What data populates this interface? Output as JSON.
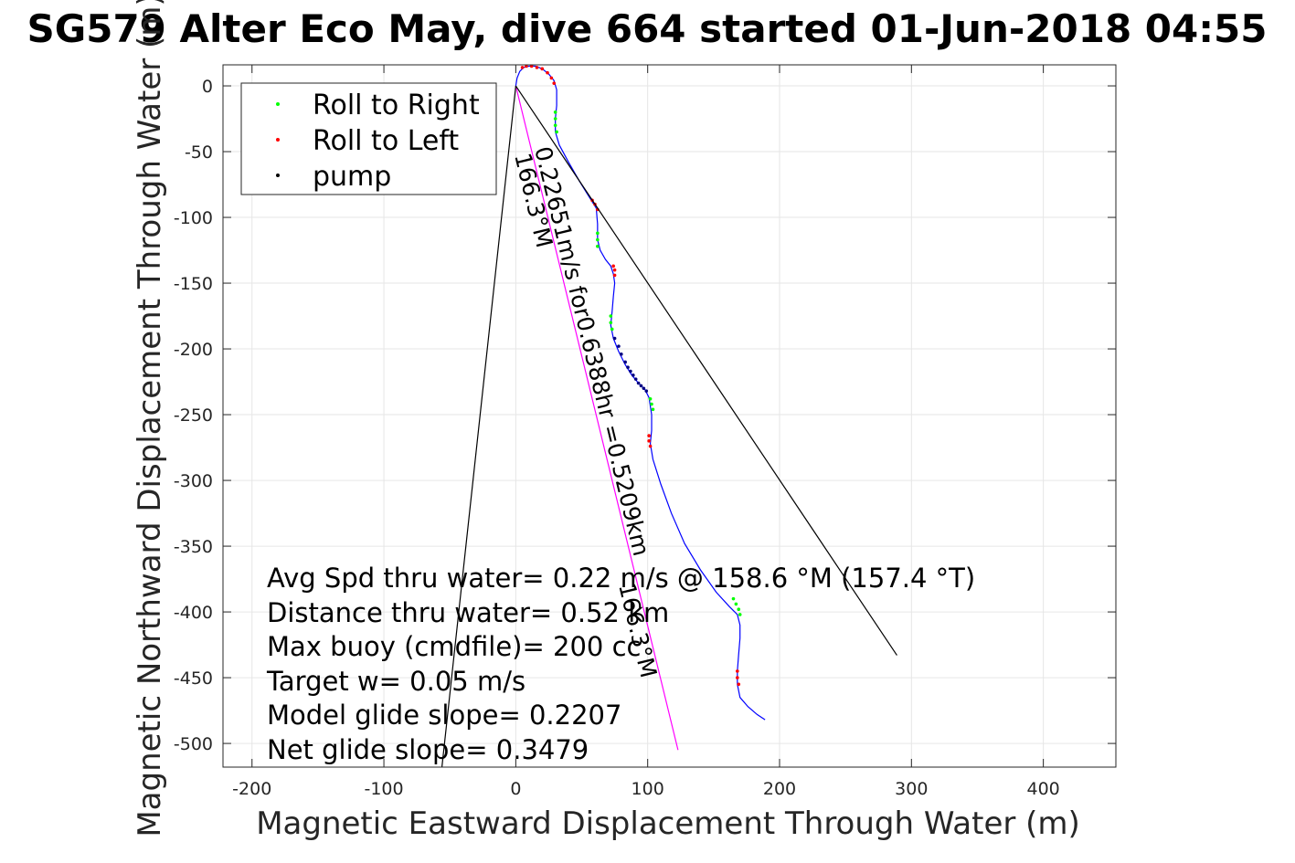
{
  "chart_data": {
    "type": "scatter",
    "title": "SG579 Alter Eco May, dive 664 started 01-Jun-2018 04:55",
    "xlabel": "Magnetic Eastward Displacement Through Water (m)",
    "ylabel": "Magnetic Northward Displacement Through Water (m)",
    "xlim": [
      -222,
      455
    ],
    "ylim": [
      -518,
      16
    ],
    "xticks": [
      -200,
      -100,
      0,
      100,
      200,
      300,
      400
    ],
    "xtick_labels": [
      "-200",
      "-100",
      "0",
      "100",
      "200",
      "300",
      "400"
    ],
    "yticks": [
      0,
      -50,
      -100,
      -150,
      -200,
      -250,
      -300,
      -350,
      -400,
      -450,
      -500
    ],
    "ytick_labels": [
      "0",
      "-50",
      "-100",
      "-150",
      "-200",
      "-250",
      "-300",
      "-350",
      "-400",
      "-450",
      "-500"
    ],
    "grid": true,
    "legend_placement": "top-left",
    "legend": [
      {
        "label": "Roll to Right",
        "color": "#00ff00"
      },
      {
        "label": "Roll to Left",
        "color": "#ff0000"
      },
      {
        "label": "pump",
        "color": "#000000"
      }
    ],
    "series": [
      {
        "name": "track",
        "style": "line",
        "color": "#0000ff",
        "x": [
          0,
          1,
          3,
          6,
          10,
          15,
          20,
          25,
          29,
          31,
          31,
          30,
          30,
          33,
          40,
          48,
          56,
          61,
          62,
          62,
          64,
          68,
          72,
          74,
          75,
          74,
          73,
          72,
          74,
          78,
          83,
          88,
          93,
          98,
          101,
          103,
          103,
          102,
          104,
          110,
          118,
          128,
          140,
          152,
          162,
          168,
          170,
          170,
          169,
          168,
          168,
          170,
          176,
          183,
          189
        ],
        "y": [
          0,
          6,
          11,
          14,
          15,
          15,
          13,
          9,
          4,
          -3,
          -15,
          -25,
          -35,
          -45,
          -58,
          -72,
          -85,
          -93,
          -105,
          -117,
          -125,
          -132,
          -137,
          -143,
          -150,
          -160,
          -172,
          -182,
          -192,
          -202,
          -212,
          -220,
          -226,
          -231,
          -237,
          -250,
          -262,
          -272,
          -284,
          -303,
          -325,
          -348,
          -368,
          -385,
          -396,
          -402,
          -410,
          -420,
          -432,
          -445,
          -455,
          -465,
          -472,
          -478,
          -482
        ]
      },
      {
        "name": "Roll to Right",
        "style": "points",
        "color": "#00ff00",
        "x": [
          30,
          30,
          30,
          31,
          62,
          62,
          62,
          72,
          72,
          73,
          102,
          103,
          104,
          165,
          167,
          169,
          170
        ],
        "y": [
          -20,
          -25,
          -30,
          -35,
          -112,
          -117,
          -122,
          -175,
          -180,
          -185,
          -238,
          -242,
          -246,
          -390,
          -394,
          -398,
          -402
        ]
      },
      {
        "name": "Roll to Left",
        "style": "points",
        "color": "#ff0000",
        "x": [
          5,
          8,
          12,
          16,
          20,
          24,
          27,
          29,
          58,
          60,
          62,
          74,
          75,
          75,
          101,
          101,
          102,
          168,
          168,
          169
        ],
        "y": [
          14,
          15,
          15,
          14,
          13,
          10,
          6,
          2,
          -87,
          -90,
          -94,
          -137,
          -140,
          -144,
          -266,
          -270,
          -274,
          -445,
          -450,
          -455
        ]
      },
      {
        "name": "pump",
        "style": "points",
        "color": "#000080",
        "x": [
          75,
          78,
          80,
          83,
          85,
          87,
          89,
          91,
          93,
          95,
          97,
          99
        ],
        "y": [
          -192,
          -198,
          -204,
          -210,
          -214,
          -217,
          -220,
          -223,
          -226,
          -228,
          -230,
          -232
        ]
      },
      {
        "name": "heading line",
        "style": "line",
        "color": "#ff00ff",
        "x": [
          0,
          123
        ],
        "y": [
          0,
          -505
        ]
      },
      {
        "name": "direct line",
        "style": "line",
        "color": "#000000",
        "x": [
          0,
          289
        ],
        "y": [
          0,
          -433
        ]
      },
      {
        "name": "fan line",
        "style": "line",
        "color": "#000000",
        "x": [
          0,
          -56
        ],
        "y": [
          0,
          -518
        ]
      }
    ],
    "annotations": {
      "along_track_text": "0.22651m/s for0.6388hr =0.5209km",
      "along_track_heading": "166.3°M",
      "end_heading": "166.3°M",
      "stats": [
        "Avg Spd thru water=  0.22 m/s @ 158.6 °M (157.4 °T)",
        "Distance thru water=  0.52 km",
        "Max buoy (cmdfile)= 200 cc",
        "Target w= 0.05 m/s",
        "Model glide slope= 0.2207",
        "Net glide slope= 0.3479"
      ]
    }
  }
}
